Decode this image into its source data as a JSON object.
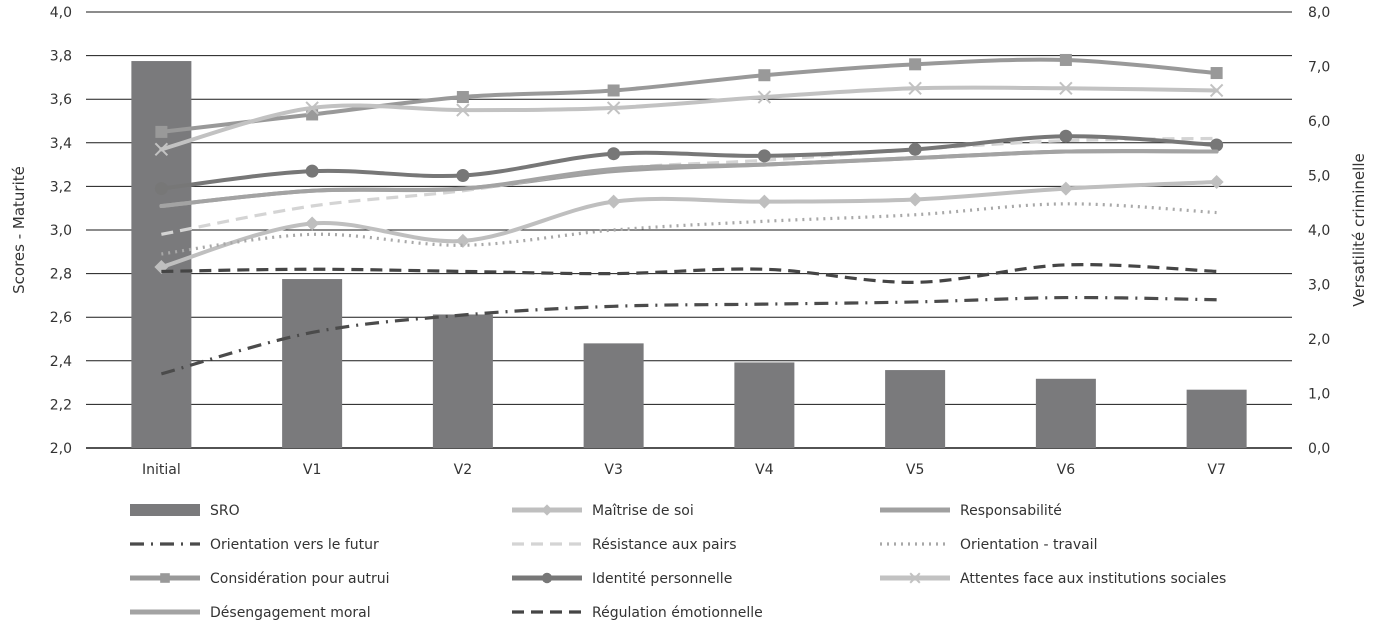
{
  "chart_data": {
    "type": "bar+line",
    "categories": [
      "Initial",
      "V1",
      "V2",
      "V3",
      "V4",
      "V5",
      "V6",
      "V7"
    ],
    "ylabel_left": "Scores - Maturité",
    "ylabel_right": "Versatilité criminelle",
    "ylim_left": [
      2.0,
      4.0
    ],
    "ylim_right": [
      0.0,
      8.0
    ],
    "yticks_left": [
      "2,0",
      "2,2",
      "2,4",
      "2,6",
      "2,8",
      "3,0",
      "3,2",
      "3,4",
      "3,6",
      "3,8",
      "4,0"
    ],
    "yticks_right": [
      "0,0",
      "1,0",
      "2,0",
      "3,0",
      "4,0",
      "5,0",
      "6,0",
      "7,0",
      "8,0"
    ],
    "grid": true,
    "legend_position": "bottom",
    "bar_series": {
      "name": "SRO",
      "axis": "right",
      "color": "#7a7a7c",
      "values": [
        7.1,
        3.1,
        2.45,
        1.92,
        1.57,
        1.43,
        1.27,
        1.07
      ]
    },
    "series": [
      {
        "name": "Maîtrise de soi",
        "axis": "left",
        "color": "#bfbfbf",
        "style": "solid",
        "marker": "diamond",
        "values": [
          2.83,
          3.03,
          2.95,
          3.13,
          3.13,
          3.14,
          3.19,
          3.22
        ]
      },
      {
        "name": "Responsabilité",
        "axis": "left",
        "color": "#a0a0a0",
        "style": "solid",
        "marker": "none",
        "values": [
          3.11,
          3.18,
          3.19,
          3.27,
          3.3,
          3.33,
          3.36,
          3.36
        ]
      },
      {
        "name": "Orientation vers le futur",
        "axis": "left",
        "color": "#4b4b4b",
        "style": "dashdot",
        "marker": "none",
        "values": [
          2.34,
          2.53,
          2.61,
          2.65,
          2.66,
          2.67,
          2.69,
          2.68
        ]
      },
      {
        "name": "Résistance aux pairs",
        "axis": "left",
        "color": "#d4d4d4",
        "style": "dashed",
        "marker": "none",
        "values": [
          2.98,
          3.11,
          3.18,
          3.28,
          3.32,
          3.37,
          3.41,
          3.42
        ]
      },
      {
        "name": "Orientation - travail",
        "axis": "left",
        "color": "#a8a8a8",
        "style": "dotted",
        "marker": "none",
        "values": [
          2.89,
          2.98,
          2.93,
          3.0,
          3.04,
          3.07,
          3.12,
          3.08
        ]
      },
      {
        "name": "Considération pour autrui",
        "axis": "left",
        "color": "#999999",
        "style": "solid",
        "marker": "square",
        "values": [
          3.45,
          3.53,
          3.61,
          3.64,
          3.71,
          3.76,
          3.78,
          3.72
        ]
      },
      {
        "name": "Identité personnelle",
        "axis": "left",
        "color": "#777777",
        "style": "solid",
        "marker": "circle",
        "values": [
          3.19,
          3.27,
          3.25,
          3.35,
          3.34,
          3.37,
          3.43,
          3.39
        ]
      },
      {
        "name": "Attentes face aux institutions sociales",
        "axis": "left",
        "color": "#c2c2c2",
        "style": "solid",
        "marker": "x",
        "values": [
          3.37,
          3.56,
          3.55,
          3.56,
          3.61,
          3.65,
          3.65,
          3.64
        ]
      },
      {
        "name": "Désengagement moral",
        "axis": "left",
        "color": "#a3a3a3",
        "style": "solid",
        "marker": "none",
        "values": [
          3.11,
          3.18,
          3.19,
          3.28,
          3.3,
          3.33,
          3.36,
          3.36
        ]
      },
      {
        "name": "Régulation émotionnelle",
        "axis": "left",
        "color": "#454545",
        "style": "dashed",
        "marker": "none",
        "values": [
          2.81,
          2.82,
          2.81,
          2.8,
          2.82,
          2.76,
          2.84,
          2.81
        ]
      }
    ],
    "legend": [
      "SRO",
      "Maîtrise de soi",
      "Responsabilité",
      "Orientation vers le futur",
      "Résistance aux pairs",
      "Orientation - travail",
      "Considération pour autrui",
      "Identité personnelle",
      "Attentes face aux institutions sociales",
      "Désengagement moral",
      "Régulation émotionnelle"
    ]
  }
}
